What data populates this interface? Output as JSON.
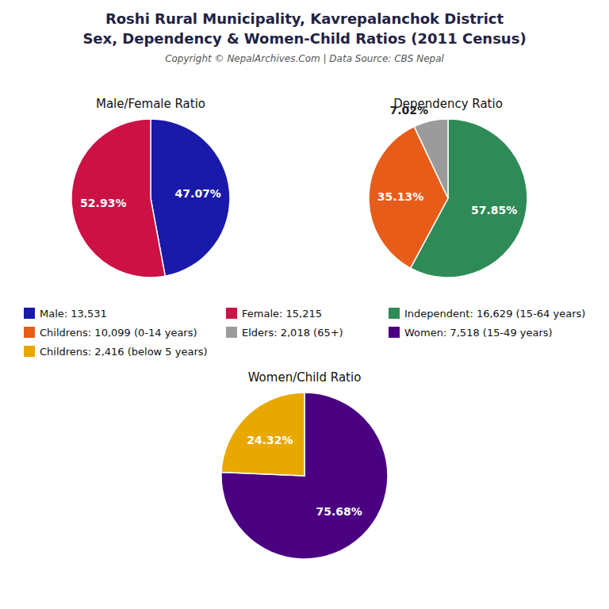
{
  "title": "Roshi Rural Municipality, Kavrepalanchok District",
  "subtitle": "Sex, Dependency & Women-Child Ratios (2011 Census)",
  "annotations": [
    "Copyright © NepalArchives.Com | Data Source: CBS Nepal"
  ],
  "chart_data": [
    {
      "type": "pie",
      "title": "Male/Female Ratio",
      "categories": [
        "Male: 13,531",
        "Female: 15,215"
      ],
      "values": [
        47.07,
        52.93
      ],
      "value_labels": [
        "47.07%",
        "52.93%"
      ],
      "colors": [
        "#1a1aaa",
        "#cc1144"
      ],
      "data_labels": true,
      "legend": "center"
    },
    {
      "type": "pie",
      "title": "Dependency Ratio",
      "categories": [
        "Independent: 16,629 (15-64 years)",
        "Childrens: 10,099 (0-14 years)",
        "Elders: 2,018 (65+)"
      ],
      "values": [
        57.85,
        35.13,
        7.02
      ],
      "value_labels": [
        "57.85%",
        "35.13%",
        "7.02%"
      ],
      "colors": [
        "#2e8b57",
        "#e85c1a",
        "#9b9b9b"
      ],
      "data_labels": true,
      "legend": "center"
    },
    {
      "type": "pie",
      "title": "Women/Child Ratio",
      "categories": [
        "Women: 7,518 (15-49 years)",
        "Childrens: 2,416 (below 5 years)"
      ],
      "values": [
        75.68,
        24.32
      ],
      "value_labels": [
        "75.68%",
        "24.32%"
      ],
      "colors": [
        "#4b0082",
        "#e8a800"
      ],
      "data_labels": true,
      "legend": "center"
    }
  ]
}
